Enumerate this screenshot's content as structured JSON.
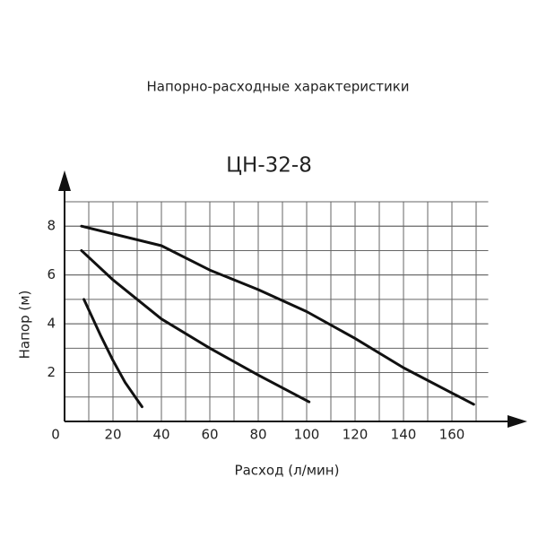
{
  "chart_data": {
    "type": "line",
    "title": "Напорно-расходные характеристики",
    "subtitle": "ЦН-32-8",
    "x_label": "Расход (л/мин)",
    "y_label": "Напор (м)",
    "xlim": [
      0,
      175
    ],
    "ylim": [
      0,
      9
    ],
    "xticks": [
      0,
      20,
      40,
      60,
      80,
      100,
      120,
      140,
      160
    ],
    "yticks": [
      2,
      4,
      6,
      8
    ],
    "grid": true,
    "series": [
      {
        "color": "#111111",
        "x": [
          7,
          40,
          60,
          80,
          100,
          120,
          140,
          169
        ],
        "values": [
          8.0,
          7.2,
          6.2,
          5.4,
          4.5,
          3.4,
          2.2,
          0.7
        ]
      },
      {
        "color": "#111111",
        "x": [
          7,
          20,
          40,
          60,
          80,
          101
        ],
        "values": [
          7.0,
          5.8,
          4.2,
          3.0,
          1.9,
          0.8
        ]
      },
      {
        "color": "#111111",
        "x": [
          8,
          15,
          20,
          25,
          32
        ],
        "values": [
          5.0,
          3.5,
          2.5,
          1.6,
          0.6
        ]
      }
    ]
  }
}
